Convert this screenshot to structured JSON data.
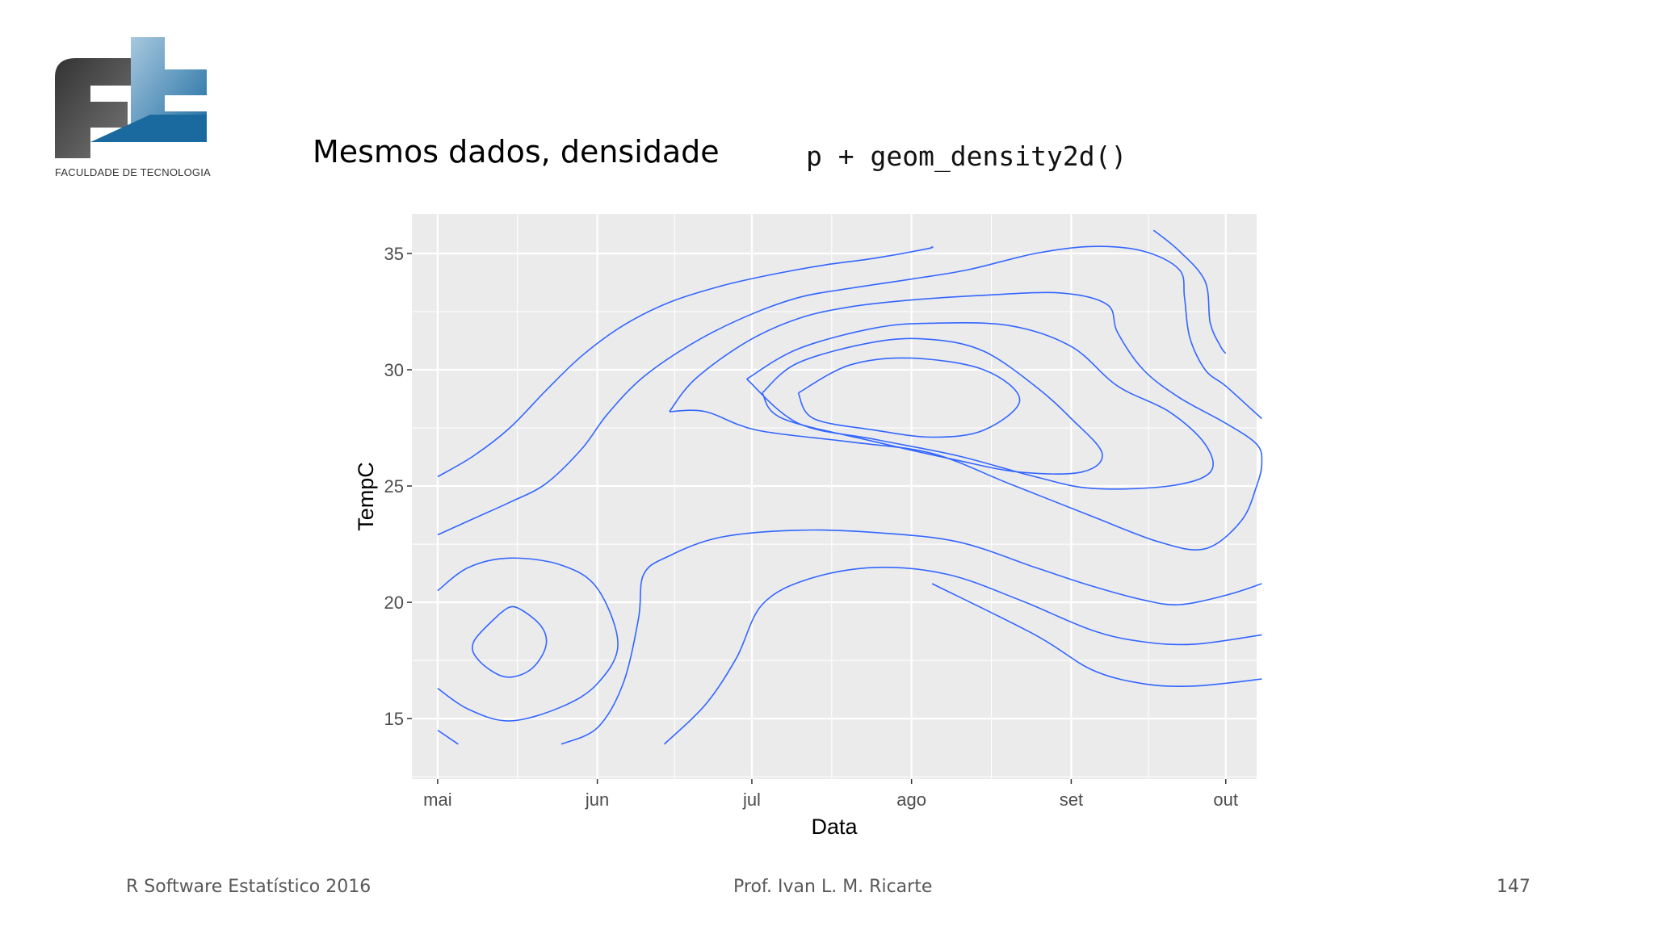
{
  "logo": {
    "text": "FACULDADE DE TECNOLOGIA"
  },
  "slide": {
    "title": "Mesmos dados, densidade",
    "code": "p + geom_density2d()"
  },
  "footer": {
    "left": "R Software Estatístico 2016",
    "center": "Prof. Ivan L. M. Ricarte",
    "page": "147"
  },
  "colors": {
    "contour": "#3366ff",
    "panel": "#ebebeb",
    "grid": "#ffffff"
  },
  "chart_data": {
    "type": "line",
    "title": "",
    "xlabel": "Data",
    "ylabel": "TempC",
    "x_ticks": [
      "mai",
      "jun",
      "jul",
      "ago",
      "set",
      "out"
    ],
    "x_tick_dates": [
      "2016-05-01",
      "2016-06-01",
      "2016-07-01",
      "2016-08-01",
      "2016-09-01",
      "2016-10-01"
    ],
    "y_ticks": [
      15,
      20,
      25,
      30,
      35
    ],
    "xlim": [
      "2016-04-26",
      "2016-10-07"
    ],
    "ylim": [
      12.4,
      36.7
    ],
    "grid": true,
    "series": [
      {
        "points": [
          [
            "2016-05-01",
            25.4
          ],
          [
            "2016-05-08",
            26.3
          ],
          [
            "2016-05-15",
            27.5
          ],
          [
            "2016-05-22",
            29.1
          ],
          [
            "2016-05-29",
            30.6
          ],
          [
            "2016-06-06",
            31.9
          ],
          [
            "2016-06-15",
            32.9
          ],
          [
            "2016-06-25",
            33.6
          ],
          [
            "2016-07-05",
            34.1
          ],
          [
            "2016-07-15",
            34.5
          ],
          [
            "2016-07-25",
            34.8
          ],
          [
            "2016-08-04",
            35.2
          ],
          [
            "2016-08-05",
            35.3
          ]
        ]
      },
      {
        "points": [
          [
            "2016-05-01",
            22.9
          ],
          [
            "2016-05-08",
            23.6
          ],
          [
            "2016-05-15",
            24.3
          ],
          [
            "2016-05-22",
            25.1
          ],
          [
            "2016-05-29",
            26.6
          ],
          [
            "2016-06-03",
            28.1
          ],
          [
            "2016-06-10",
            29.7
          ],
          [
            "2016-06-20",
            31.2
          ],
          [
            "2016-06-30",
            32.3
          ],
          [
            "2016-07-10",
            33.1
          ],
          [
            "2016-07-20",
            33.5
          ],
          [
            "2016-08-01",
            33.9
          ],
          [
            "2016-08-12",
            34.3
          ],
          [
            "2016-08-25",
            35.0
          ],
          [
            "2016-09-05",
            35.3
          ],
          [
            "2016-09-15",
            35.1
          ],
          [
            "2016-09-22",
            34.3
          ],
          [
            "2016-09-23",
            33.1
          ],
          [
            "2016-09-24",
            31.4
          ],
          [
            "2016-09-27",
            30.0
          ],
          [
            "2016-10-01",
            29.3
          ],
          [
            "2016-10-06",
            28.3
          ],
          [
            "2016-10-08",
            27.9
          ]
        ]
      },
      {
        "points": [
          [
            "2016-09-17",
            36.0
          ],
          [
            "2016-09-22",
            35.1
          ],
          [
            "2016-09-27",
            33.8
          ],
          [
            "2016-09-28",
            32.0
          ],
          [
            "2016-09-30",
            31.0
          ],
          [
            "2016-10-01",
            30.7
          ]
        ]
      },
      {
        "points": [
          [
            "2016-06-15",
            28.2
          ],
          [
            "2016-06-20",
            29.6
          ],
          [
            "2016-06-30",
            31.2
          ],
          [
            "2016-07-10",
            32.2
          ],
          [
            "2016-07-20",
            32.7
          ],
          [
            "2016-08-01",
            33.0
          ],
          [
            "2016-08-15",
            33.2
          ],
          [
            "2016-08-30",
            33.3
          ],
          [
            "2016-09-08",
            32.8
          ],
          [
            "2016-09-10",
            31.6
          ],
          [
            "2016-09-15",
            30.0
          ],
          [
            "2016-09-22",
            28.8
          ],
          [
            "2016-10-01",
            27.7
          ],
          [
            "2016-10-07",
            26.8
          ],
          [
            "2016-10-08",
            26.0
          ],
          [
            "2016-10-07",
            25.0
          ],
          [
            "2016-10-04",
            23.5
          ],
          [
            "2016-09-27",
            22.3
          ],
          [
            "2016-09-18",
            22.6
          ],
          [
            "2016-09-05",
            23.7
          ],
          [
            "2016-08-20",
            25.1
          ],
          [
            "2016-08-05",
            26.4
          ],
          [
            "2016-07-20",
            26.9
          ],
          [
            "2016-07-02",
            27.4
          ],
          [
            "2016-06-22",
            28.2
          ],
          [
            "2016-06-15",
            28.2
          ]
        ]
      },
      {
        "points": [
          [
            "2016-06-30",
            29.6
          ],
          [
            "2016-07-10",
            30.9
          ],
          [
            "2016-07-25",
            31.8
          ],
          [
            "2016-08-05",
            32.0
          ],
          [
            "2016-08-20",
            31.9
          ],
          [
            "2016-09-01",
            31.0
          ],
          [
            "2016-09-10",
            29.3
          ],
          [
            "2016-09-20",
            28.2
          ],
          [
            "2016-09-27",
            26.8
          ],
          [
            "2016-09-28",
            25.6
          ],
          [
            "2016-09-20",
            25.0
          ],
          [
            "2016-09-05",
            24.9
          ],
          [
            "2016-08-25",
            25.4
          ],
          [
            "2016-08-10",
            26.3
          ],
          [
            "2016-07-25",
            27.0
          ],
          [
            "2016-07-10",
            27.7
          ],
          [
            "2016-06-30",
            29.6
          ]
        ]
      },
      {
        "points": [
          [
            "2016-07-03",
            29.0
          ],
          [
            "2016-07-10",
            30.3
          ],
          [
            "2016-07-25",
            31.2
          ],
          [
            "2016-08-05",
            31.3
          ],
          [
            "2016-08-15",
            30.8
          ],
          [
            "2016-08-25",
            29.3
          ],
          [
            "2016-09-01",
            27.9
          ],
          [
            "2016-09-07",
            26.4
          ],
          [
            "2016-09-03",
            25.6
          ],
          [
            "2016-08-22",
            25.6
          ],
          [
            "2016-08-10",
            26.1
          ],
          [
            "2016-07-25",
            26.9
          ],
          [
            "2016-07-07",
            27.9
          ],
          [
            "2016-07-03",
            29.0
          ]
        ]
      },
      {
        "points": [
          [
            "2016-07-10",
            29.0
          ],
          [
            "2016-07-20",
            30.2
          ],
          [
            "2016-08-01",
            30.5
          ],
          [
            "2016-08-15",
            30.0
          ],
          [
            "2016-08-22",
            28.7
          ],
          [
            "2016-08-15",
            27.4
          ],
          [
            "2016-08-05",
            27.1
          ],
          [
            "2016-07-25",
            27.4
          ],
          [
            "2016-07-13",
            27.9
          ],
          [
            "2016-07-10",
            29.0
          ]
        ]
      },
      {
        "points": [
          [
            "2016-05-01",
            20.5
          ],
          [
            "2016-05-07",
            21.5
          ],
          [
            "2016-05-15",
            21.9
          ],
          [
            "2016-05-25",
            21.6
          ],
          [
            "2016-06-01",
            20.6
          ],
          [
            "2016-06-05",
            18.2
          ],
          [
            "2016-06-01",
            16.5
          ],
          [
            "2016-05-25",
            15.5
          ],
          [
            "2016-05-15",
            14.9
          ],
          [
            "2016-05-07",
            15.4
          ],
          [
            "2016-05-01",
            16.3
          ]
        ]
      },
      {
        "points": [
          [
            "2016-05-13",
            19.5
          ],
          [
            "2016-05-16",
            19.8
          ],
          [
            "2016-05-21",
            19.0
          ],
          [
            "2016-05-22",
            18.1
          ],
          [
            "2016-05-19",
            17.1
          ],
          [
            "2016-05-14",
            16.8
          ],
          [
            "2016-05-09",
            17.5
          ],
          [
            "2016-05-08",
            18.3
          ],
          [
            "2016-05-13",
            19.5
          ]
        ]
      },
      {
        "points": [
          [
            "2016-05-01",
            14.5
          ],
          [
            "2016-05-05",
            13.9
          ]
        ]
      },
      {
        "points": [
          [
            "2016-05-25",
            13.9
          ],
          [
            "2016-06-01",
            14.6
          ],
          [
            "2016-06-06",
            16.5
          ],
          [
            "2016-06-09",
            19.3
          ],
          [
            "2016-06-10",
            21.2
          ],
          [
            "2016-06-15",
            22.0
          ],
          [
            "2016-06-25",
            22.8
          ],
          [
            "2016-07-10",
            23.1
          ],
          [
            "2016-07-25",
            23.0
          ],
          [
            "2016-08-10",
            22.6
          ],
          [
            "2016-08-25",
            21.5
          ],
          [
            "2016-09-05",
            20.7
          ],
          [
            "2016-09-15",
            20.1
          ],
          [
            "2016-09-22",
            19.9
          ],
          [
            "2016-10-01",
            20.3
          ],
          [
            "2016-10-08",
            20.8
          ]
        ]
      },
      {
        "points": [
          [
            "2016-06-14",
            13.9
          ],
          [
            "2016-06-22",
            15.6
          ],
          [
            "2016-06-28",
            17.6
          ],
          [
            "2016-07-03",
            19.9
          ],
          [
            "2016-07-12",
            21.0
          ],
          [
            "2016-07-25",
            21.5
          ],
          [
            "2016-08-08",
            21.2
          ],
          [
            "2016-08-22",
            20.1
          ],
          [
            "2016-09-05",
            18.8
          ],
          [
            "2016-09-15",
            18.3
          ],
          [
            "2016-09-25",
            18.2
          ],
          [
            "2016-10-08",
            18.6
          ]
        ]
      },
      {
        "points": [
          [
            "2016-08-05",
            20.8
          ],
          [
            "2016-08-25",
            18.6
          ],
          [
            "2016-09-05",
            17.1
          ],
          [
            "2016-09-15",
            16.5
          ],
          [
            "2016-09-25",
            16.4
          ],
          [
            "2016-10-08",
            16.7
          ]
        ]
      }
    ]
  }
}
